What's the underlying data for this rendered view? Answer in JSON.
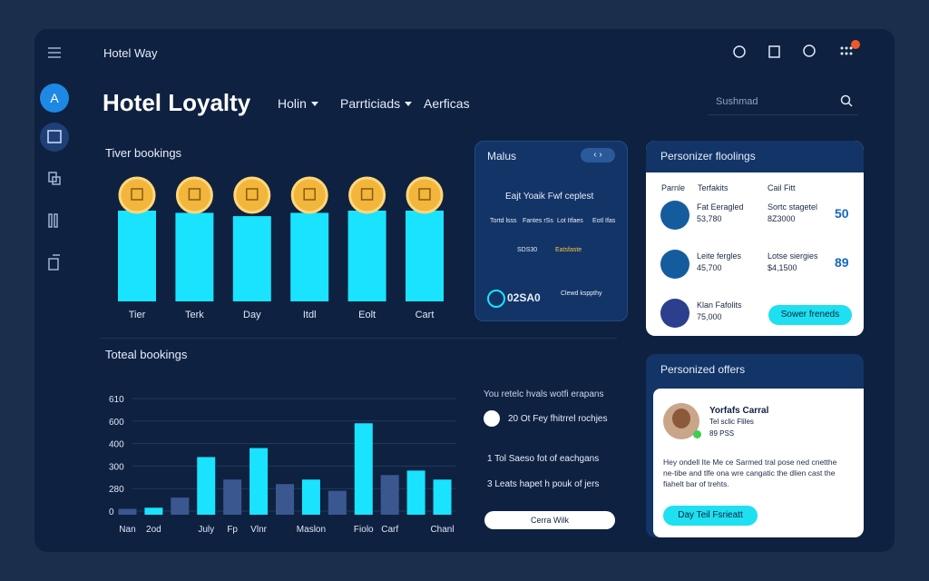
{
  "header": {
    "brand": "Hotel Way",
    "title": "Hotel Loyalty",
    "nav": [
      "Holin",
      "Parrticiads",
      "Aerficas"
    ],
    "search_placeholder": "Sushmad"
  },
  "tier_chart": {
    "type": "bar",
    "title": "Tiver bookings",
    "categories": [
      "Tier",
      "Terk",
      "Day",
      "Itdl",
      "Eolt",
      "Cart"
    ],
    "values": [
      82,
      80,
      77,
      80,
      82,
      82
    ],
    "color": "#19e3ff"
  },
  "total_chart": {
    "type": "bar",
    "title": "Toteal bookings",
    "categories": [
      "Nan",
      "2od",
      null,
      "July",
      "Fp",
      "Vlnr",
      null,
      "Maslon",
      null,
      "Fiolo",
      "Carf",
      null,
      "Chanl"
    ],
    "values": [
      28,
      42,
      168,
      340,
      288,
      380,
      284,
      288,
      252,
      580,
      292,
      296,
      288
    ],
    "colors": [
      "#3a5790",
      "#19e3ff",
      "#3a5790",
      "#19e3ff",
      "#3a5790",
      "#19e3ff",
      "#3a5790",
      "#19e3ff",
      "#3a5790",
      "#19e3ff",
      "#3a5790",
      "#19e3ff",
      "#19e3ff"
    ],
    "ylim": [
      0,
      610
    ],
    "yticks": [
      0,
      280,
      300,
      400,
      600,
      610
    ],
    "grid": true
  },
  "insights": {
    "title": "You retelc hvals wotfi erapans",
    "items": [
      "20 Ot Fey fhitrrel rochjes",
      "1 Tol Saeso fot of eachgans",
      "3 Leats hapet h pouk of jers"
    ],
    "button": "Cerra Wilk"
  },
  "malus": {
    "title": "Malus",
    "subtitle": "Eajt Yoaik Fwf ceplest",
    "columns": [
      "Tortd lsss",
      "Fantes rSs",
      "Lot Itfaes",
      "Eotl Ifas"
    ],
    "stat": "SDS30",
    "stat_note": "Eatsfaste",
    "total": "02SA0",
    "total_label": "Clewd ksppthy"
  },
  "bookings_card": {
    "title": "Personizer floolings",
    "columns": [
      "Parnle",
      "Terfakits",
      "Cail Fitt"
    ],
    "rows": [
      {
        "name": "Fat Eeragled",
        "amount": "53,780",
        "detail": "Sortc stagetel",
        "detail_amount": "8Z3000",
        "score": "50"
      },
      {
        "name": "Leite fergles",
        "amount": "45,700",
        "detail": "Lotse siergies",
        "detail_amount": "$4,1500",
        "score": "89"
      },
      {
        "name": "Klan Fafolits",
        "amount": "75,000"
      }
    ],
    "button": "Sower freneds"
  },
  "offers_card": {
    "title": "Personized offers",
    "name": "Yorfafs Carral",
    "role": "Tel sclic Fliles",
    "meta": "89 PSS",
    "text": "Hey ondell Ite Me ce Sarmed tral pose ned cnetthe ne-tibe and tlfe ona wre cangatic the dlien cast the fiahelt bar of trehts.",
    "button": "Day Teil Fsrieatt"
  }
}
